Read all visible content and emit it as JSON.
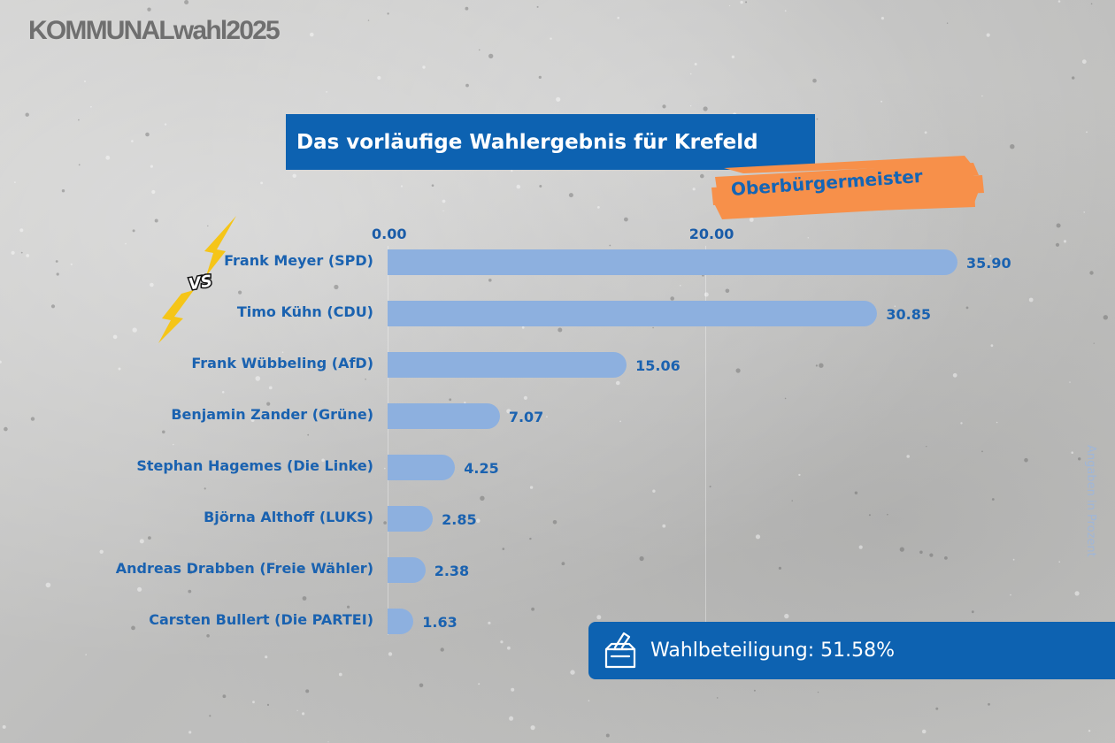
{
  "logo_text": "KOMMUNALwahl2025",
  "title": "Das vorläufige Wahlergebnis für Krefeld",
  "subtitle_tag": "Oberbürgermeister",
  "footnote": "Angaben in Prozent",
  "turnout": {
    "icon": "ballot-box-icon",
    "text": "Wahlbeteiligung: 51.58%"
  },
  "vs_badge": "VS",
  "colors": {
    "brand_blue": "#0d62b1",
    "bar_blue": "#8db0df",
    "label_blue": "#1a62b0",
    "tag_orange": "#f7904a",
    "bolt_yellow": "#f5c518"
  },
  "chart_data": {
    "type": "bar",
    "orientation": "horizontal",
    "categories": [
      "Frank Meyer (SPD)",
      "Timo Kühn (CDU)",
      "Frank Wübbeling (AfD)",
      "Benjamin Zander (Grüne)",
      "Stephan Hagemes (Die Linke)",
      "Björna Althoff (LUKS)",
      "Andreas Drabben (Freie Wähler)",
      "Carsten Bullert (Die PARTEI)"
    ],
    "values": [
      35.9,
      30.85,
      15.06,
      7.07,
      4.25,
      2.85,
      2.38,
      1.63
    ],
    "value_labels": [
      "35.90",
      "30.85",
      "15.06",
      "7.07",
      "4.25",
      "2.85",
      "2.38",
      "1.63"
    ],
    "x_ticks": [
      "0.00",
      "20.00"
    ],
    "x_tick_values": [
      0,
      20
    ],
    "xlim": [
      0,
      40
    ],
    "grid": true,
    "legend": "none"
  }
}
